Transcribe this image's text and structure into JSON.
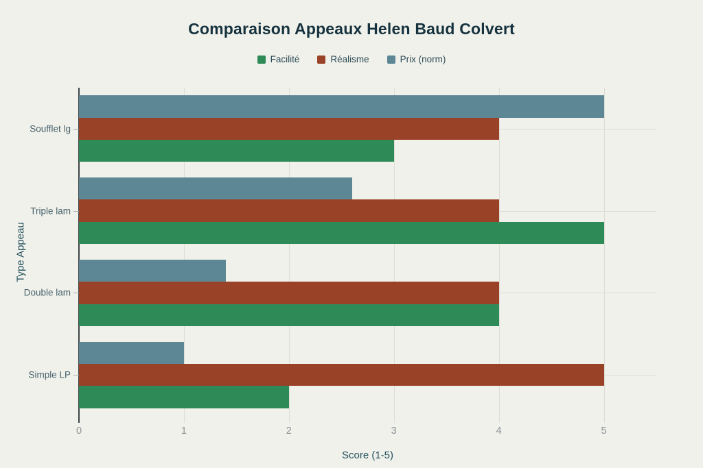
{
  "title": "Comparaison Appeaux Helen Baud Colvert",
  "colors": {
    "background": "#f0f1ea",
    "title_text": "#16323f",
    "axis_line": "#3f4448",
    "gridline": "#dcded5",
    "tick_label": "#8b9298",
    "category_label": "#47626d",
    "axis_title": "#24505e",
    "facilite": "#2e8b57",
    "realisme": "#9a4227",
    "prix": "#5d8794"
  },
  "chart_data": {
    "type": "bar",
    "orientation": "horizontal",
    "title": "Comparaison Appeaux Helen Baud Colvert",
    "categories": [
      "Soufflet lg",
      "Triple lam",
      "Double lam",
      "Simple LP"
    ],
    "series": [
      {
        "name": "Facilité",
        "color": "#2e8b57",
        "values": [
          3,
          5,
          4,
          2
        ]
      },
      {
        "name": "Réalisme",
        "color": "#9a4227",
        "values": [
          4,
          4,
          4,
          5
        ]
      },
      {
        "name": "Prix (norm)",
        "color": "#5d8794",
        "values": [
          5,
          2.6,
          1.4,
          1
        ]
      }
    ],
    "xlabel": "Score (1-5)",
    "ylabel": "Type Appeau",
    "xlim": [
      0,
      5.5
    ],
    "xticks": [
      0,
      1,
      2,
      3,
      4,
      5
    ],
    "grid": "vertical gridlines at each x tick; horizontal gridlines at category centers",
    "legend_position": "top-center",
    "bar_group_order_top_to_bottom": [
      "Prix (norm)",
      "Réalisme",
      "Facilité"
    ]
  }
}
